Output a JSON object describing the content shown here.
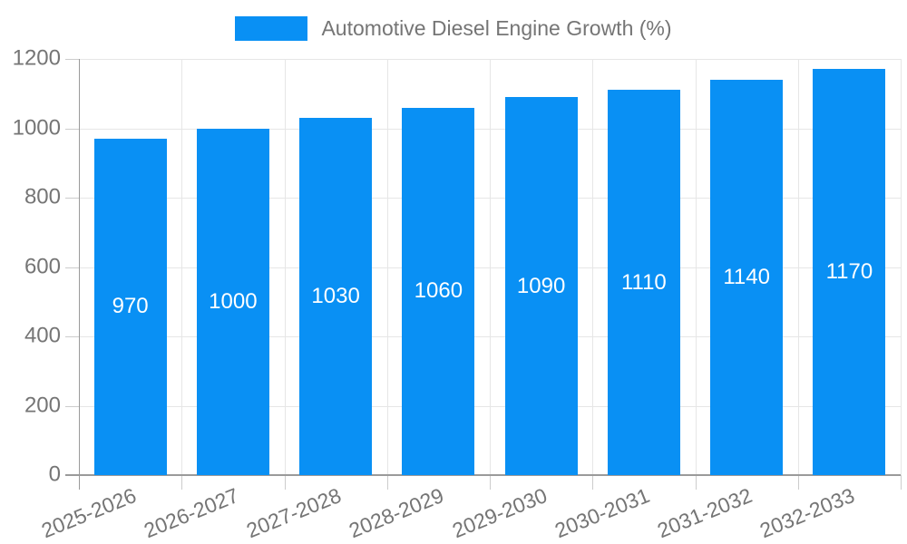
{
  "chart_data": {
    "type": "bar",
    "title": "",
    "legend_label": "Automotive Diesel Engine Growth (%)",
    "legend_position": "top-center",
    "categories": [
      "2025-2026",
      "2026-2027",
      "2027-2028",
      "2028-2029",
      "2029-2030",
      "2030-2031",
      "2031-2032",
      "2032-2033"
    ],
    "series": [
      {
        "name": "Automotive Diesel Engine Growth (%)",
        "values": [
          970,
          1000,
          1030,
          1060,
          1090,
          1110,
          1140,
          1170
        ]
      }
    ],
    "xlabel": "",
    "ylabel": "",
    "ylim": [
      0,
      1200
    ],
    "yticks": [
      0,
      200,
      400,
      600,
      800,
      1000,
      1200
    ],
    "grid": "horizontal and vertical light-gray gridlines",
    "bar_value_labels_inside": true,
    "x_label_rotation_deg": -22,
    "colors": {
      "bar": "#0990f4",
      "bar_value_text": "#ffffff",
      "axis_text": "#757575",
      "legend_text": "#757575",
      "gridline": "#e6e6e6",
      "axis_line": "#9a9a9a",
      "tick": "#cccccc",
      "background": "#ffffff"
    }
  }
}
